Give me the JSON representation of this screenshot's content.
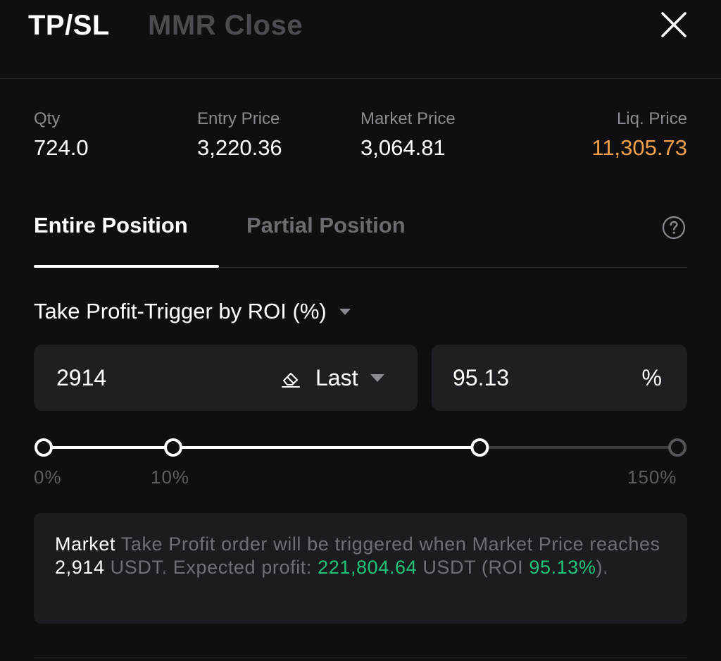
{
  "header": {
    "tabs": [
      {
        "label": "TP/SL",
        "active": true
      },
      {
        "label": "MMR Close",
        "active": false
      }
    ],
    "close_icon": "close-icon"
  },
  "stats": {
    "qty": {
      "label": "Qty",
      "value": "724.0"
    },
    "entry_price": {
      "label": "Entry Price",
      "value": "3,220.36"
    },
    "market_price": {
      "label": "Market Price",
      "value": "3,064.81"
    },
    "liq_price": {
      "label": "Liq. Price",
      "value": "11,305.73"
    }
  },
  "position_tabs": [
    {
      "label": "Entire Position",
      "active": true
    },
    {
      "label": "Partial Position",
      "active": false
    }
  ],
  "help_icon": "question-circle-icon",
  "trigger": {
    "label": "Take Profit-Trigger by ROI (%)"
  },
  "price_input": {
    "value": "2914",
    "price_type": "Last"
  },
  "roi_input": {
    "value": "95.13",
    "unit": "%"
  },
  "slider": {
    "min_label": "0%",
    "mark_label": "10%",
    "max_label": "150%",
    "mark_percent": 10,
    "max_percent": 150,
    "value_percent": 95.13
  },
  "info": {
    "order_type": "Market",
    "text_1": " Take Profit order will be triggered when Market Price reaches ",
    "trigger_price": "2,914",
    "text_2": " USDT. Expected profit: ",
    "profit": "221,804.64",
    "text_3": " USDT (ROI ",
    "roi": "95.13%",
    "text_4": ")."
  },
  "colors": {
    "background": "#0f0f10",
    "liq_price": "#f2a04b",
    "profit_green": "#22c27a",
    "input_bg": "#1e1f22"
  }
}
